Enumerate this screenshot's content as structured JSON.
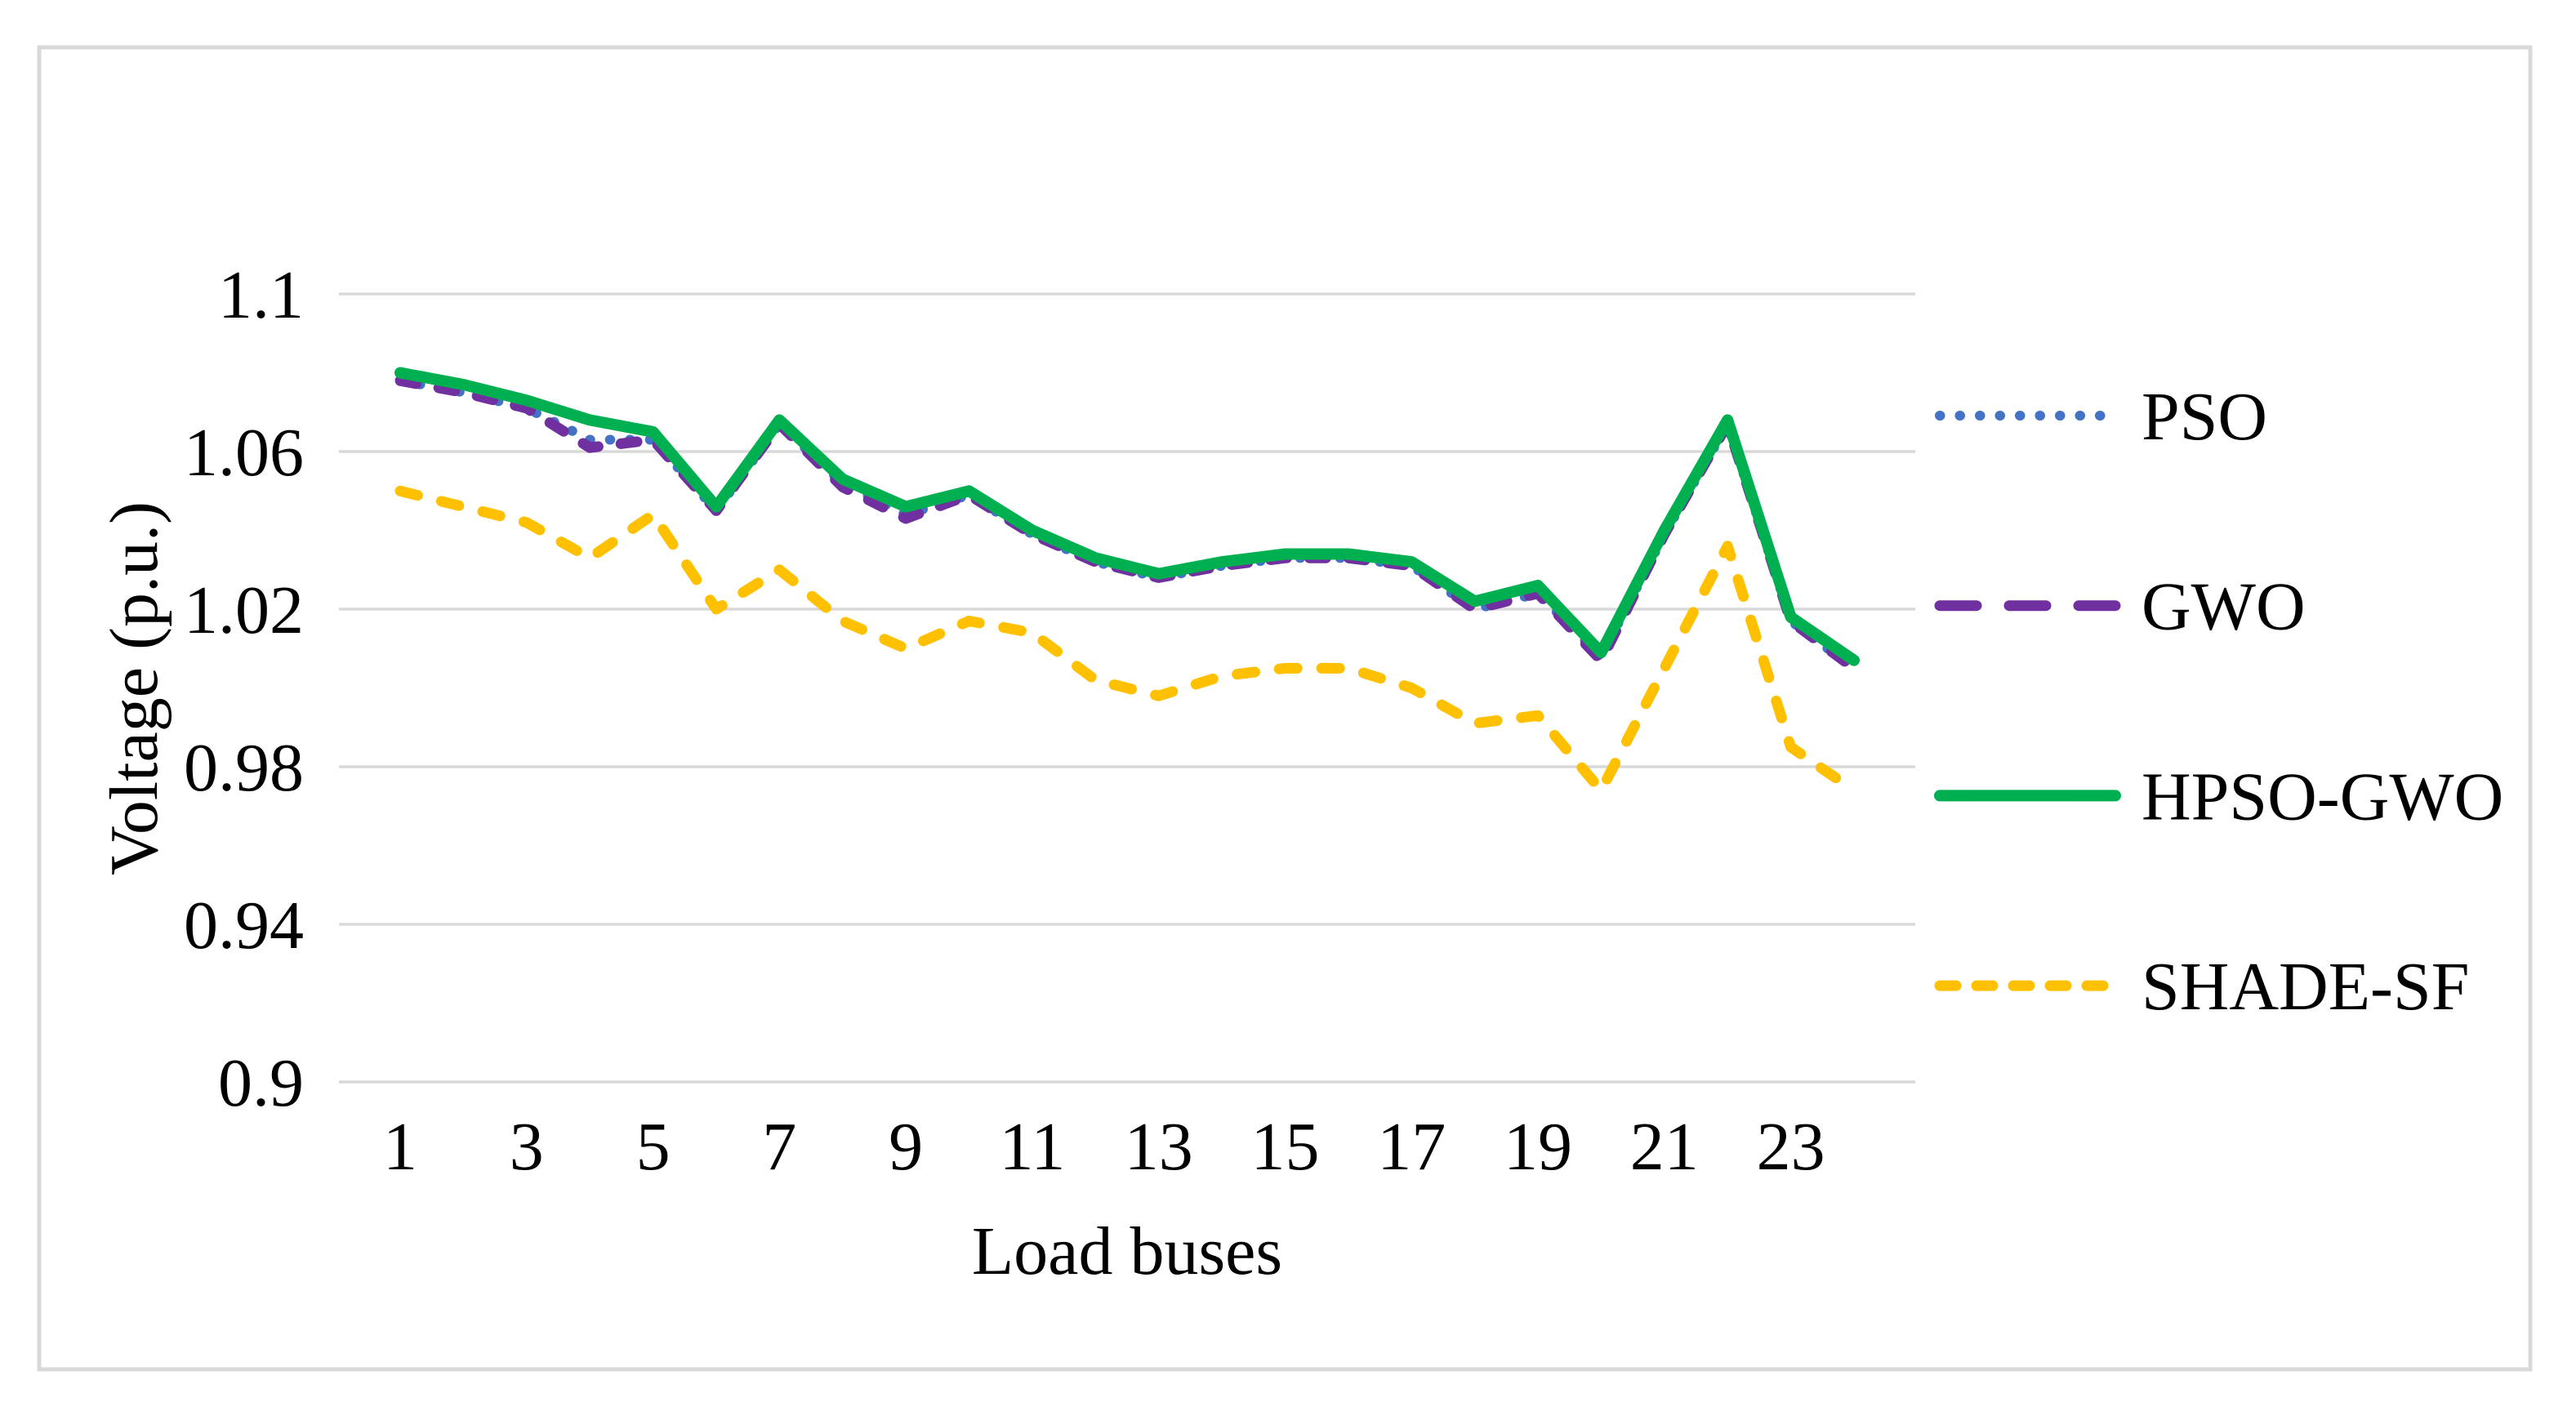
{
  "figure": {
    "border_color": "#d9d9d9",
    "background_color": "#ffffff",
    "gridline_color": "#d9d9d9",
    "text_color": "#000000"
  },
  "chart_data": {
    "type": "line",
    "title": "",
    "xlabel": "Load buses",
    "ylabel": "Voltage (p.u.)",
    "x": [
      1,
      2,
      3,
      4,
      5,
      6,
      7,
      8,
      9,
      10,
      11,
      12,
      13,
      14,
      15,
      16,
      17,
      18,
      19,
      20,
      21,
      22,
      23,
      24
    ],
    "xtick_labels": [
      "1",
      "3",
      "5",
      "7",
      "9",
      "11",
      "13",
      "15",
      "17",
      "19",
      "21",
      "23"
    ],
    "xticks": [
      1,
      3,
      5,
      7,
      9,
      11,
      13,
      15,
      17,
      19,
      21,
      23
    ],
    "ytick_labels": [
      "1.1",
      "1.06",
      "1.02",
      "0.98",
      "0.94",
      "0.9"
    ],
    "yticks": [
      1.1,
      1.06,
      1.02,
      0.98,
      0.94,
      0.9
    ],
    "ylim": [
      0.9,
      1.1
    ],
    "xlim": [
      1,
      24
    ],
    "grid": "horizontal",
    "legend_position": "right",
    "series": [
      {
        "name": "PSO",
        "color": "#4472C4",
        "style": "dotted",
        "values": [
          1.078,
          1.075,
          1.071,
          1.063,
          1.063,
          1.045,
          1.067,
          1.052,
          1.044,
          1.049,
          1.039,
          1.032,
          1.028,
          1.031,
          1.033,
          1.033,
          1.031,
          1.02,
          1.024,
          1.008,
          1.039,
          1.067,
          1.017,
          1.005
        ]
      },
      {
        "name": "GWO",
        "color": "#7030A0",
        "style": "dashed",
        "values": [
          1.078,
          1.075,
          1.071,
          1.061,
          1.063,
          1.045,
          1.067,
          1.051,
          1.043,
          1.049,
          1.039,
          1.032,
          1.028,
          1.031,
          1.033,
          1.033,
          1.031,
          1.02,
          1.024,
          1.007,
          1.039,
          1.067,
          1.017,
          1.005
        ]
      },
      {
        "name": "HPSO-GWO",
        "color": "#00B050",
        "style": "solid",
        "values": [
          1.08,
          1.077,
          1.073,
          1.068,
          1.065,
          1.046,
          1.068,
          1.053,
          1.046,
          1.05,
          1.04,
          1.033,
          1.029,
          1.032,
          1.034,
          1.034,
          1.032,
          1.022,
          1.026,
          1.009,
          1.04,
          1.068,
          1.018,
          1.007
        ]
      },
      {
        "name": "SHADE-SF",
        "color": "#FFC000",
        "style": "dashed-short",
        "values": [
          1.05,
          1.046,
          1.042,
          1.033,
          1.044,
          1.02,
          1.03,
          1.017,
          1.01,
          1.017,
          1.014,
          1.002,
          0.998,
          1.003,
          1.005,
          1.005,
          1.0,
          0.991,
          0.993,
          0.974,
          1.005,
          1.036,
          0.985,
          0.974
        ]
      }
    ]
  }
}
